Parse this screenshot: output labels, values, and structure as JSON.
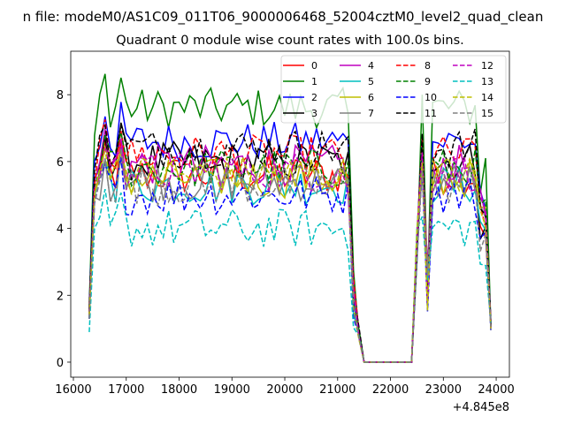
{
  "chart_data": {
    "type": "line",
    "suptitle": "n file: modeM0/AS1C09_011T06_9000006468_52004cztM0_level2_quad_clean",
    "title": "Quadrant 0 module wise count rates with 100.0s bins.",
    "xlabel": "",
    "ylabel": "",
    "x_offset_label": "+4.845e8",
    "xlim": [
      15950,
      24250
    ],
    "ylim": [
      -0.45,
      9.3
    ],
    "xticks": [
      16000,
      17000,
      18000,
      19000,
      20000,
      21000,
      22000,
      23000,
      24000
    ],
    "xtick_labels": [
      "16000",
      "17000",
      "18000",
      "19000",
      "20000",
      "21000",
      "22000",
      "23000",
      "24000"
    ],
    "yticks": [
      0,
      2,
      4,
      6,
      8
    ],
    "ytick_labels": [
      "0",
      "2",
      "4",
      "6",
      "8"
    ],
    "legend": {
      "placement": "top-right",
      "columns": 4
    },
    "x": [
      16300,
      16400,
      16500,
      16600,
      16700,
      16800,
      16900,
      17000,
      17100,
      17200,
      17300,
      17400,
      17500,
      17600,
      17700,
      17800,
      17900,
      18000,
      18100,
      18200,
      18300,
      18400,
      18500,
      18600,
      18700,
      18800,
      18900,
      19000,
      19100,
      19200,
      19300,
      19400,
      19500,
      19600,
      19700,
      19800,
      19900,
      20000,
      20100,
      20200,
      20300,
      20400,
      20500,
      20600,
      20700,
      20800,
      20900,
      21000,
      21100,
      21200,
      21300,
      21400,
      21500,
      21600,
      21700,
      21800,
      21900,
      22000,
      22100,
      22200,
      22300,
      22400,
      22500,
      22600,
      22700,
      22800,
      22900,
      23000,
      23100,
      23200,
      23300,
      23400,
      23500,
      23600,
      23700,
      23800,
      23900
    ],
    "series": [
      {
        "name": "0",
        "color": "#ff0000",
        "style": "solid",
        "base": 5.6,
        "start": 1.3,
        "gap": 0.05,
        "peak": 5.6
      },
      {
        "name": "1",
        "color": "#008000",
        "style": "solid",
        "base": 7.6,
        "start": 1.7,
        "gap": 0.05,
        "peak": 7.8
      },
      {
        "name": "2",
        "color": "#0000ff",
        "style": "solid",
        "base": 6.6,
        "start": 1.6,
        "gap": 0.05,
        "peak": 6.7
      },
      {
        "name": "3",
        "color": "#000000",
        "style": "solid",
        "base": 6.0,
        "start": 1.5,
        "gap": 0.05,
        "peak": 6.1
      },
      {
        "name": "4",
        "color": "#bf00bf",
        "style": "solid",
        "base": 5.9,
        "start": 1.5,
        "gap": 0.05,
        "peak": 6.0
      },
      {
        "name": "5",
        "color": "#00bfbf",
        "style": "solid",
        "base": 5.3,
        "start": 1.3,
        "gap": 0.05,
        "peak": 5.5
      },
      {
        "name": "6",
        "color": "#bfbf00",
        "style": "solid",
        "base": 5.5,
        "start": 1.4,
        "gap": 0.05,
        "peak": 5.6
      },
      {
        "name": "7",
        "color": "#808080",
        "style": "solid",
        "base": 5.4,
        "start": 1.4,
        "gap": 0.05,
        "peak": 5.5
      },
      {
        "name": "8",
        "color": "#ff0000",
        "style": "dashed",
        "base": 6.2,
        "start": 1.5,
        "gap": 0.05,
        "peak": 6.2
      },
      {
        "name": "9",
        "color": "#008000",
        "style": "dashed",
        "base": 5.8,
        "start": 1.4,
        "gap": 0.05,
        "peak": 5.9
      },
      {
        "name": "10",
        "color": "#0000ff",
        "style": "dashed",
        "base": 5.0,
        "start": 1.3,
        "gap": 0.05,
        "peak": 5.1
      },
      {
        "name": "11",
        "color": "#000000",
        "style": "dashed",
        "base": 6.4,
        "start": 1.6,
        "gap": 0.05,
        "peak": 6.4
      },
      {
        "name": "12",
        "color": "#bf00bf",
        "style": "dashed",
        "base": 5.7,
        "start": 1.4,
        "gap": 0.05,
        "peak": 5.8
      },
      {
        "name": "13",
        "color": "#00bfbf",
        "style": "dashed",
        "base": 4.0,
        "start": 0.9,
        "gap": 0.05,
        "peak": 4.2
      },
      {
        "name": "14",
        "color": "#bfbf00",
        "style": "dashed",
        "base": 5.6,
        "start": 1.4,
        "gap": 0.05,
        "peak": 5.7
      },
      {
        "name": "15",
        "color": "#808080",
        "style": "dashed",
        "base": 5.3,
        "start": 1.3,
        "gap": 0.05,
        "peak": 5.4
      }
    ]
  }
}
